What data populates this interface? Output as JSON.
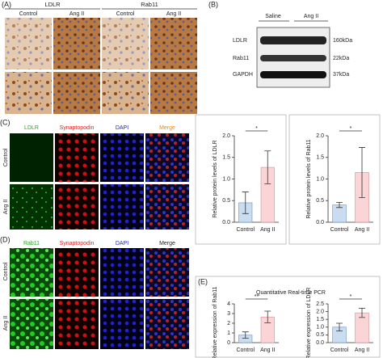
{
  "panels": {
    "a": {
      "label": "(A)",
      "groups": [
        "LDLR",
        "Rab11"
      ],
      "conditions": [
        "Control",
        "Ang II",
        "Control",
        "Ang II"
      ]
    },
    "b": {
      "label": "(B)",
      "conditions": [
        "Saline",
        "Ang II"
      ],
      "bands": [
        "LDLR",
        "Rab11",
        "GAPDH"
      ],
      "sizes": [
        "160kDa",
        "22kDa",
        "37kDa"
      ]
    },
    "c": {
      "label": "(C)",
      "channels": [
        "LDLR",
        "Synaptopodin",
        "DAPI",
        "Merge"
      ],
      "rows": [
        "Control",
        "Ang II"
      ]
    },
    "d": {
      "label": "(D)",
      "channels": [
        "Rab11",
        "Synaptopodin",
        "DAPI",
        "Merge"
      ],
      "rows": [
        "Control",
        "Ang II"
      ]
    },
    "e": {
      "label": "(E)",
      "title": "Quantitative Real-time PCR"
    }
  },
  "chart_data": [
    {
      "type": "bar",
      "ylabel": "Relative protein levels of LDLR",
      "categories": [
        "Control",
        "Ang II"
      ],
      "values": [
        0.45,
        1.27
      ],
      "errors": [
        0.25,
        0.38
      ],
      "colors": [
        "#c9dcf0",
        "#fad4d6"
      ],
      "significance": "*",
      "ylim": [
        0,
        2.0
      ],
      "yticks": [
        {
          "value": 0,
          "label": "0.0"
        },
        {
          "value": 0.5,
          "label": "0.5"
        },
        {
          "value": 1,
          "label": "1.0"
        },
        {
          "value": 1.5,
          "label": "1.5"
        },
        {
          "value": 2,
          "label": "2.0"
        }
      ]
    },
    {
      "type": "bar",
      "ylabel": "Relative protein levels of Rab11",
      "categories": [
        "Control",
        "Ang II"
      ],
      "values": [
        0.4,
        1.15
      ],
      "errors": [
        0.06,
        0.58
      ],
      "colors": [
        "#c9dcf0",
        "#fad4d6"
      ],
      "significance": "*",
      "ylim": [
        0,
        2.0
      ],
      "yticks": [
        {
          "value": 0,
          "label": "0.0"
        },
        {
          "value": 0.5,
          "label": "0.5"
        },
        {
          "value": 1,
          "label": "1.0"
        },
        {
          "value": 1.5,
          "label": "1.5"
        },
        {
          "value": 2,
          "label": "2.0"
        }
      ]
    },
    {
      "type": "bar",
      "ylabel": "Relative expression of Rab11",
      "categories": [
        "Control",
        "Ang II"
      ],
      "values": [
        0.78,
        2.65
      ],
      "errors": [
        0.33,
        0.6
      ],
      "colors": [
        "#c9dcf0",
        "#fad4d6"
      ],
      "significance": "**",
      "ylim": [
        0,
        4
      ],
      "yticks": [
        0,
        1,
        2,
        3,
        4
      ]
    },
    {
      "type": "bar",
      "ylabel": "Relative expression of LDLR",
      "categories": [
        "Control",
        "Ang II"
      ],
      "values": [
        1.0,
        1.92
      ],
      "errors": [
        0.25,
        0.3
      ],
      "colors": [
        "#c9dcf0",
        "#fad4d6"
      ],
      "significance": "*",
      "ylim": [
        0,
        2.5
      ],
      "yticks": [
        {
          "value": 0,
          "label": "0.0"
        },
        {
          "value": 0.5,
          "label": "0.5"
        },
        {
          "value": 1,
          "label": "1.0"
        },
        {
          "value": 1.5,
          "label": "1.5"
        },
        {
          "value": 2,
          "label": "2.0"
        },
        {
          "value": 2.5,
          "label": "2.5"
        }
      ]
    }
  ]
}
